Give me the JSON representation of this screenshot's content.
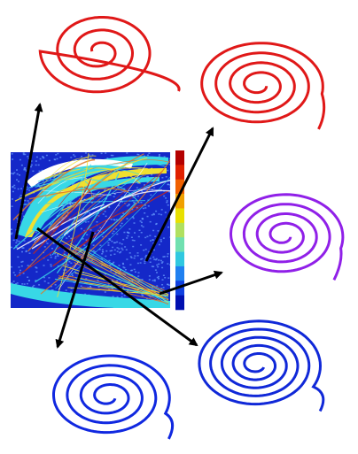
{
  "figure": {
    "central_map": {
      "colors": {
        "background": "#1428c8",
        "speckle": "#6aa0ff",
        "cyan": "#38d8e6",
        "yellow": "#f0e030",
        "orange": "#e07828",
        "red": "#c82818",
        "white": "#ffffff"
      }
    },
    "colorbar": {
      "levels": [
        "#b40000",
        "#e02000",
        "#f06000",
        "#f0a000",
        "#e8e000",
        "#b0e060",
        "#70e0b0",
        "#30c8e0",
        "#2080f0",
        "#1040e0",
        "#0010b0"
      ]
    },
    "attractors": [
      {
        "id": "top-left",
        "color": "#e01818",
        "turns": 3
      },
      {
        "id": "top-right",
        "color": "#e01818",
        "turns": 4
      },
      {
        "id": "middle-right",
        "color": "#9020e8",
        "turns": 4
      },
      {
        "id": "bottom-left",
        "color": "#1028e0",
        "turns": 4
      },
      {
        "id": "bottom-right",
        "color": "#1028d8",
        "turns": 5
      }
    ],
    "arrow_color": "#000000"
  }
}
